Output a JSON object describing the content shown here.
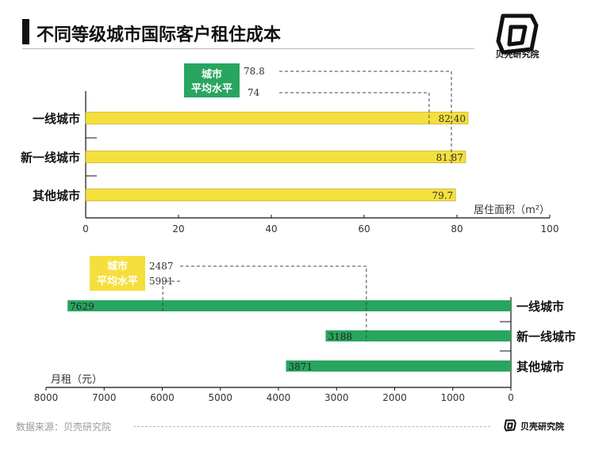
{
  "header": {
    "title": "不同等级城市国际客户租住成本",
    "logo_icon": "beike-logo-icon",
    "logo_text": "贝壳研究院"
  },
  "chart_data": [
    {
      "type": "bar",
      "orientation": "horizontal",
      "categories": [
        "一线城市",
        "新一线城市",
        "其他城市"
      ],
      "values": [
        82.4,
        81.87,
        79.7
      ],
      "value_labels": [
        "82.40",
        "81.87",
        "79.7"
      ],
      "xlabel": "居住面积（m²）",
      "xlim": [
        0,
        100
      ],
      "xticks": [
        "0",
        "20",
        "40",
        "60",
        "80",
        "100"
      ],
      "bar_color": "#F5DF3C",
      "average": {
        "badge_line1": "城市",
        "badge_line2": "平均水平",
        "badge_color": "#28A55F",
        "values": [
          78.8,
          74
        ],
        "labels": [
          "78.8",
          "74"
        ]
      }
    },
    {
      "type": "bar",
      "orientation": "horizontal",
      "direction": "right-to-left",
      "categories": [
        "一线城市",
        "新一线城市",
        "其他城市"
      ],
      "values": [
        7629,
        3188,
        3871
      ],
      "value_labels": [
        "7629",
        "3188",
        "3871"
      ],
      "xlabel": "月租（元）",
      "xlim": [
        0,
        8000
      ],
      "xticks": [
        "8000",
        "7000",
        "6000",
        "5000",
        "4000",
        "3000",
        "2000",
        "1000",
        "0"
      ],
      "bar_color": "#28A55F",
      "average": {
        "badge_line1": "城市",
        "badge_line2": "平均水平",
        "badge_color": "#F5DF3C",
        "values": [
          2487,
          5991
        ],
        "labels": [
          "2487",
          "5991"
        ]
      }
    }
  ],
  "footer": {
    "source": "数据来源：贝壳研究院",
    "logo_text": "贝壳研究院"
  }
}
